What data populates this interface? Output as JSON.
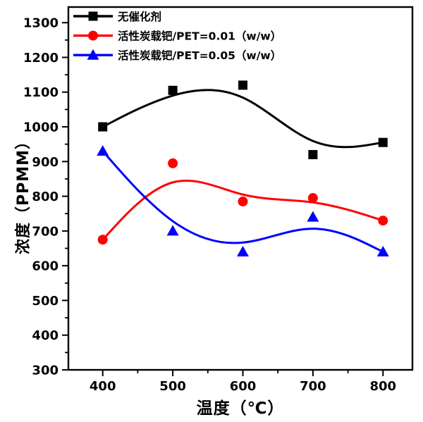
{
  "chart_data": {
    "type": "line",
    "title": "",
    "xlabel": "温度（℃）",
    "ylabel": "浓度（PPMM）",
    "x": [
      400,
      500,
      600,
      700,
      800
    ],
    "series": [
      {
        "name": "无催化剂",
        "color": "#000000",
        "marker": "square",
        "values": [
          1000,
          1105,
          1120,
          920,
          955
        ]
      },
      {
        "name": "活性炭载钯/PET=0.01（w/w）",
        "color": "#ff0000",
        "marker": "circle",
        "values": [
          675,
          895,
          785,
          795,
          730
        ]
      },
      {
        "name": "活性炭载钯/PET=0.05（w/w）",
        "color": "#0000ff",
        "marker": "triangle",
        "values": [
          930,
          700,
          640,
          740,
          640
        ]
      }
    ],
    "xlim": [
      351,
      842
    ],
    "ylim": [
      300,
      1345
    ],
    "x_major_ticks": [
      400,
      500,
      600,
      700,
      800
    ],
    "x_minor_ticks": [
      450,
      550,
      650,
      750
    ],
    "y_major_ticks": [
      300,
      400,
      500,
      600,
      700,
      800,
      900,
      1000,
      1100,
      1200,
      1300
    ],
    "y_minor_ticks": [
      350,
      450,
      550,
      650,
      750,
      850,
      950,
      1050,
      1150,
      1250
    ],
    "grid": false,
    "legend_position": "top-left-inside",
    "curve_style": "smoothed-b-spline",
    "axis_color": "#000000",
    "background_color": "#ffffff"
  }
}
